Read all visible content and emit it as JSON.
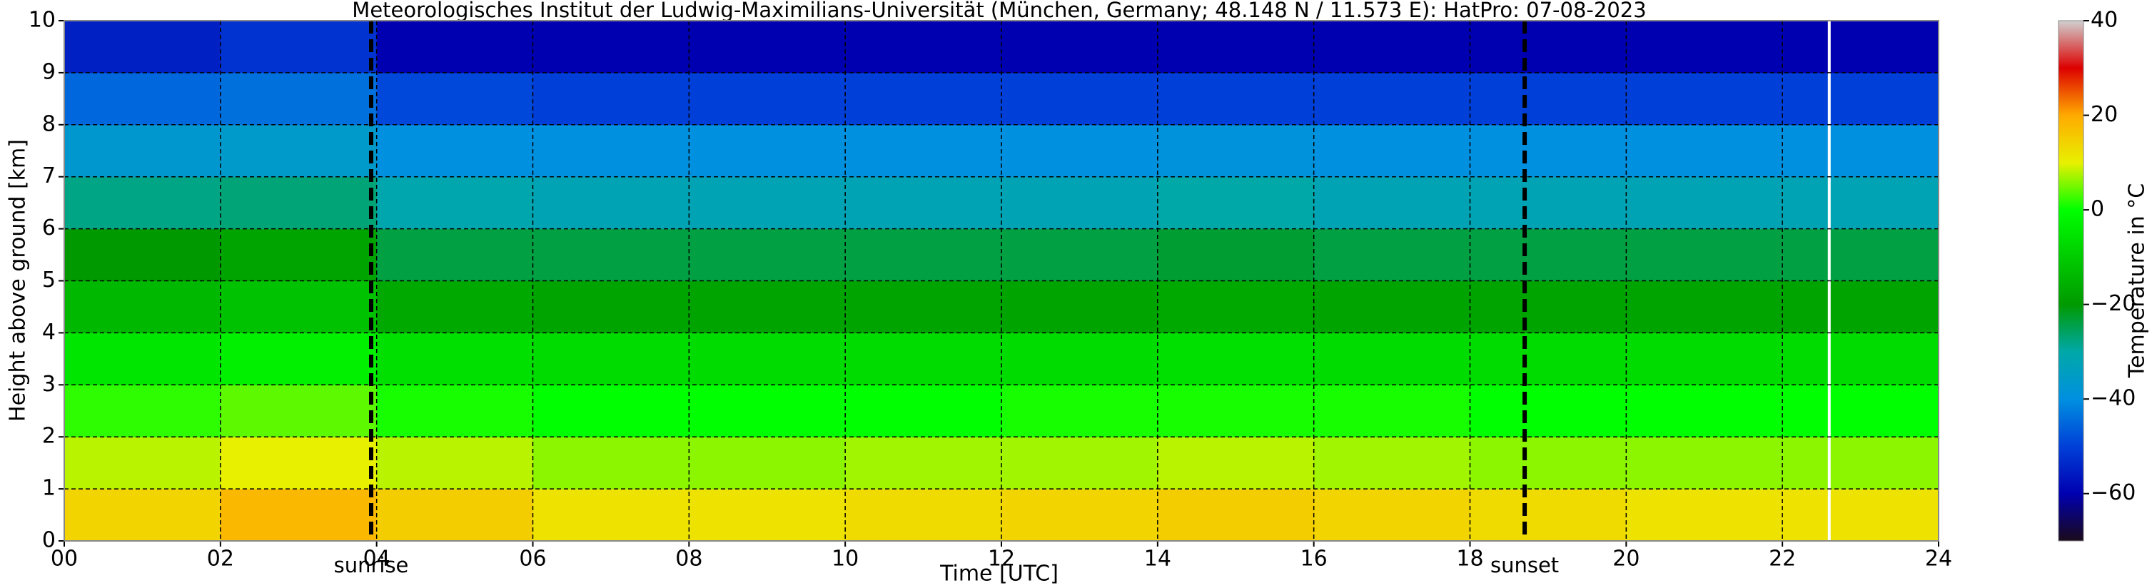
{
  "chart_data": {
    "type": "heatmap",
    "title": "Meteorologisches Institut der Ludwig-Maximilians-Universität (München, Germany; 48.148 N / 11.573 E):    HatPro: 07-08-2023",
    "x_label": "Time [UTC]",
    "y_label": "Height above ground [km]",
    "colorbar_label": "Temperature in °C",
    "x_bins": [
      0,
      2,
      4,
      6,
      8,
      10,
      12,
      14,
      16,
      18,
      20,
      22,
      24
    ],
    "y_bins": [
      0,
      1,
      2,
      3,
      4,
      5,
      6,
      7,
      8,
      9,
      10
    ],
    "values": [
      [
        14,
        18,
        15,
        12,
        12,
        13,
        14,
        15,
        14,
        13,
        12,
        12
      ],
      [
        8,
        10,
        8,
        6,
        6,
        7,
        7,
        8,
        7,
        6,
        6,
        6
      ],
      [
        2,
        4,
        1,
        0,
        0,
        0,
        1,
        1,
        1,
        0,
        0,
        0
      ],
      [
        -5,
        -3,
        -6,
        -7,
        -7,
        -7,
        -7,
        -6,
        -7,
        -7,
        -7,
        -7
      ],
      [
        -14,
        -12,
        -17,
        -18,
        -18,
        -18,
        -18,
        -17,
        -18,
        -18,
        -18,
        -18
      ],
      [
        -20,
        -18,
        -24,
        -24,
        -24,
        -24,
        -24,
        -23,
        -24,
        -24,
        -24,
        -24
      ],
      [
        -28,
        -27,
        -31,
        -32,
        -32,
        -32,
        -32,
        -30,
        -32,
        -32,
        -32,
        -32
      ],
      [
        -37,
        -36,
        -40,
        -40,
        -40,
        -40,
        -40,
        -39,
        -40,
        -40,
        -40,
        -40
      ],
      [
        -45,
        -44,
        -49,
        -50,
        -50,
        -50,
        -50,
        -50,
        -50,
        -50,
        -50,
        -50
      ],
      [
        -55,
        -52,
        -60,
        -60,
        -60,
        -60,
        -60,
        -60,
        -60,
        -60,
        -60,
        -60
      ]
    ],
    "xlim": [
      0,
      24
    ],
    "ylim": [
      0,
      10
    ],
    "xticks": [
      {
        "value": 0,
        "label": "00"
      },
      {
        "value": 2,
        "label": "02"
      },
      {
        "value": 4,
        "label": "04"
      },
      {
        "value": 6,
        "label": "06"
      },
      {
        "value": 8,
        "label": "08"
      },
      {
        "value": 10,
        "label": "10"
      },
      {
        "value": 12,
        "label": "12"
      },
      {
        "value": 14,
        "label": "14"
      },
      {
        "value": 16,
        "label": "16"
      },
      {
        "value": 18,
        "label": "18"
      },
      {
        "value": 20,
        "label": "20"
      },
      {
        "value": 22,
        "label": "22"
      },
      {
        "value": 24,
        "label": "24"
      }
    ],
    "yticks": [
      0,
      1,
      2,
      3,
      4,
      5,
      6,
      7,
      8,
      9,
      10
    ],
    "clim": [
      -70,
      40
    ],
    "cticks": [
      {
        "value": -60,
        "label": "−60"
      },
      {
        "value": -40,
        "label": "−40"
      },
      {
        "value": -20,
        "label": "−20"
      },
      0,
      20,
      40
    ],
    "colormap": [
      "#1a0a1a",
      "#0000b0",
      "#0040d8",
      "#0090e0",
      "#00a8a8",
      "#009a00",
      "#00cc00",
      "#00ff00",
      "#e8f000",
      "#ffaa00",
      "#dd0000",
      "#d0d0d0"
    ],
    "grid": true,
    "vlines": [
      {
        "x": 3.93,
        "label": "sunrise"
      },
      {
        "x": 18.7,
        "label": "sunset"
      }
    ],
    "missing_time": 22.6
  }
}
